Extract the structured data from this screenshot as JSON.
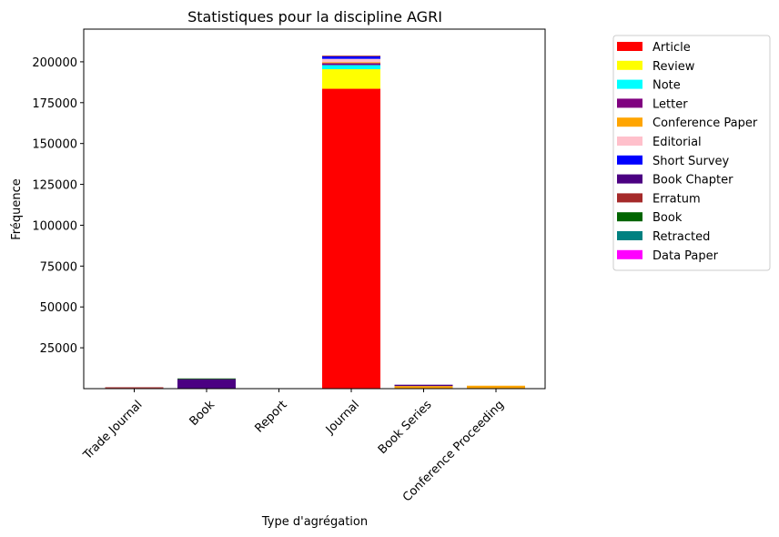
{
  "chart_data": {
    "type": "bar",
    "stacked": true,
    "title": "Statistiques pour la discipline AGRI",
    "xlabel": "Type d'agrégation",
    "ylabel": "Fréquence",
    "categories": [
      "Trade Journal",
      "Book",
      "Report",
      "Journal",
      "Book Series",
      "Conference Proceeding"
    ],
    "yticks": [
      25000,
      50000,
      75000,
      100000,
      125000,
      150000,
      175000,
      200000
    ],
    "ylim": [
      0,
      220000
    ],
    "legend_position": "right, outside plot",
    "series": [
      {
        "name": "Article",
        "color": "#ff0000",
        "values": [
          400,
          0,
          0,
          183500,
          300,
          0
        ]
      },
      {
        "name": "Review",
        "color": "#ffff00",
        "values": [
          0,
          0,
          0,
          12000,
          0,
          0
        ]
      },
      {
        "name": "Note",
        "color": "#00ffff",
        "values": [
          0,
          0,
          0,
          2500,
          0,
          0
        ]
      },
      {
        "name": "Letter",
        "color": "#800080",
        "values": [
          0,
          0,
          0,
          1200,
          0,
          0
        ]
      },
      {
        "name": "Conference Paper",
        "color": "#ffa500",
        "values": [
          0,
          0,
          0,
          600,
          1300,
          1800
        ]
      },
      {
        "name": "Editorial",
        "color": "#ffc0cb",
        "values": [
          0,
          0,
          0,
          2000,
          0,
          0
        ]
      },
      {
        "name": "Short Survey",
        "color": "#0000ff",
        "values": [
          0,
          0,
          0,
          1500,
          0,
          0
        ]
      },
      {
        "name": "Book Chapter",
        "color": "#4b0082",
        "values": [
          0,
          5800,
          0,
          0,
          800,
          0
        ]
      },
      {
        "name": "Erratum",
        "color": "#a52a2a",
        "values": [
          200,
          0,
          0,
          400,
          0,
          0
        ]
      },
      {
        "name": "Book",
        "color": "#006400",
        "values": [
          0,
          400,
          0,
          0,
          0,
          0
        ]
      },
      {
        "name": "Retracted",
        "color": "#008080",
        "values": [
          0,
          0,
          0,
          0,
          0,
          0
        ]
      },
      {
        "name": "Data Paper",
        "color": "#ff00ff",
        "values": [
          0,
          0,
          0,
          0,
          0,
          0
        ]
      }
    ]
  }
}
